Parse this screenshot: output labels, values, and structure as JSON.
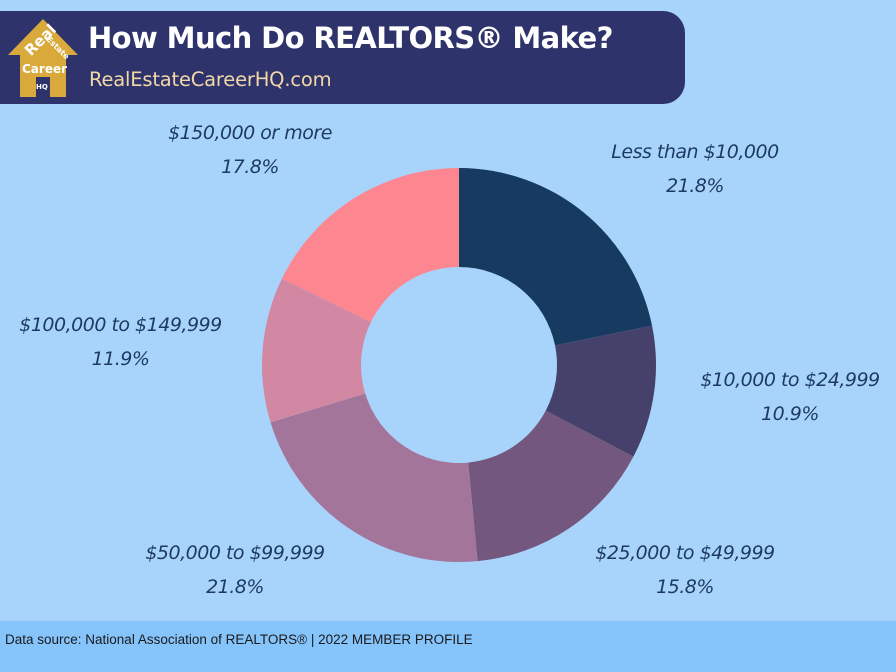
{
  "header": {
    "title": "How Much Do REALTORS®  Make?",
    "subtitle": "RealEstateCareerHQ.com",
    "logo": {
      "icon": "house-logo-icon",
      "words": [
        "Real",
        "Estate",
        "Career",
        "HQ"
      ],
      "color": "#d9a93c"
    },
    "background": "#2e346b"
  },
  "footer": {
    "source": "Data source:  National Association of REALTORS® | 2022 MEMBER PROFILE"
  },
  "labels": [
    {
      "range": "Less than $10,000",
      "pct": "21.8%"
    },
    {
      "range": "$10,000 to $24,999",
      "pct": "10.9%"
    },
    {
      "range": "$25,000 to $49,999",
      "pct": "15.8%"
    },
    {
      "range": "$50,000 to $99,999",
      "pct": "21.8%"
    },
    {
      "range": "$100,000 to $149,999",
      "pct": "11.9%"
    },
    {
      "range": "$150,000 or more",
      "pct": "17.8%"
    }
  ],
  "chart_data": {
    "type": "pie",
    "subtype": "donut",
    "title": "How Much Do REALTORS® Make?",
    "categories": [
      "Less than $10,000",
      "$10,000 to $24,999",
      "$25,000 to $49,999",
      "$50,000 to $99,999",
      "$100,000 to $149,999",
      "$150,000 or more"
    ],
    "values": [
      21.8,
      10.9,
      15.8,
      21.8,
      11.9,
      17.8
    ],
    "units": "%",
    "colors": [
      "#173b60",
      "#45416b",
      "#73577f",
      "#a3759a",
      "#d287a2",
      "#fc8791"
    ],
    "start_angle": "12 o'clock",
    "direction": "clockwise",
    "legend": "none (direct labels)",
    "source": "National Association of REALTORS® | 2022 MEMBER PROFILE"
  }
}
